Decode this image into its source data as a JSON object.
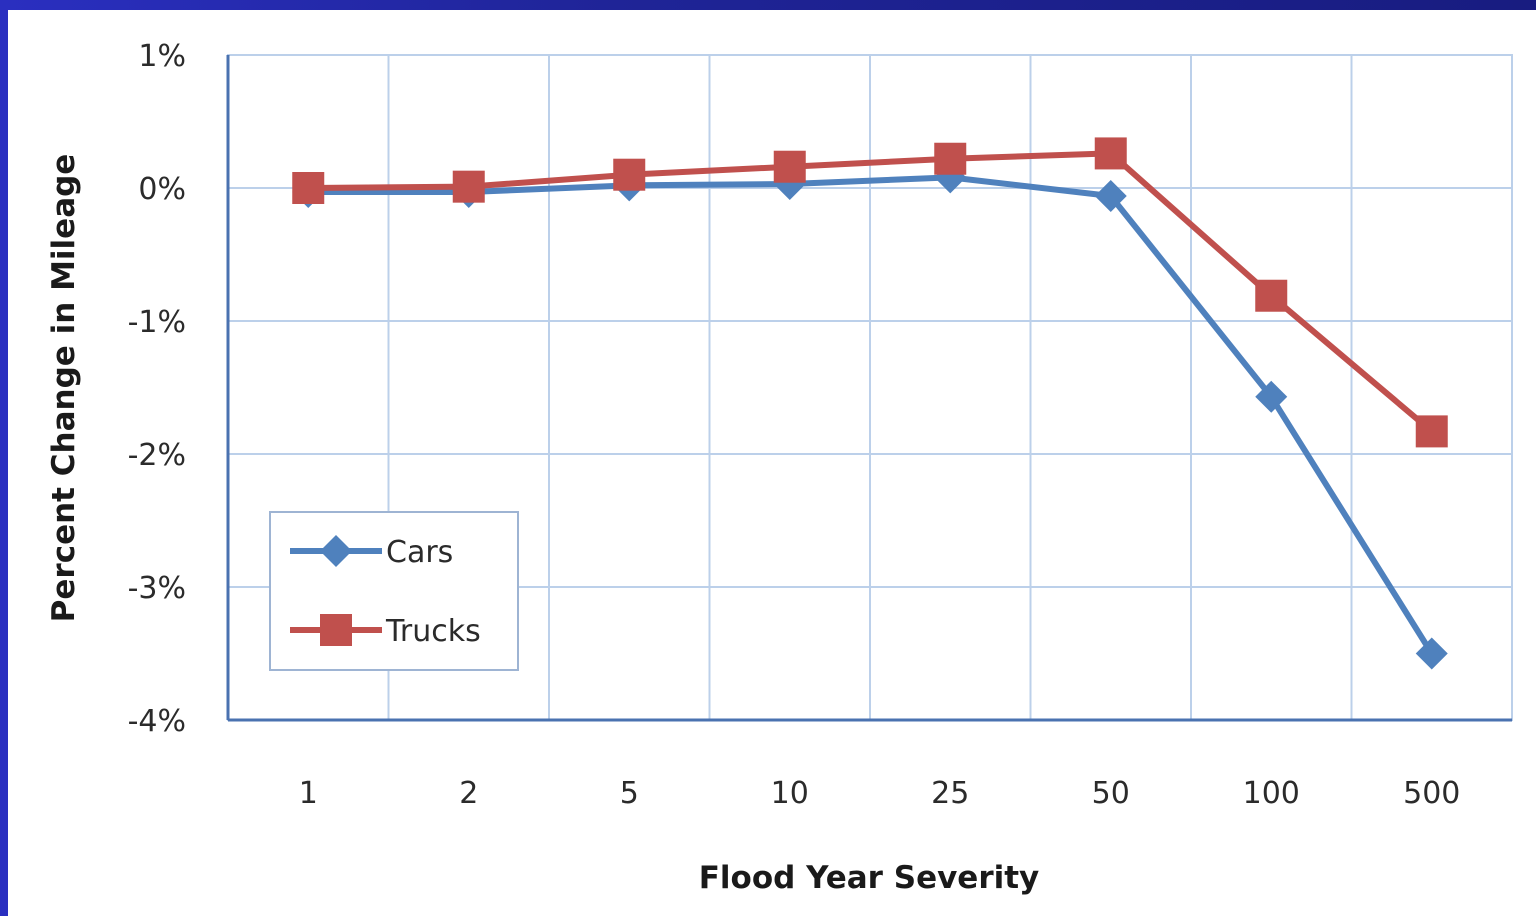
{
  "chart_data": {
    "type": "line",
    "xlabel": "Flood Year Severity",
    "ylabel": "Percent Change in Mileage",
    "categories": [
      "1",
      "2",
      "5",
      "10",
      "25",
      "50",
      "100",
      "500"
    ],
    "y_ticks": [
      "1%",
      "0%",
      "-1%",
      "-2%",
      "-3%",
      "-4%"
    ],
    "ylim": [
      -4,
      1
    ],
    "grid": true,
    "legend_position": "lower-left",
    "series": [
      {
        "name": "Cars",
        "color": "#4f81bd",
        "marker": "diamond",
        "values": [
          -0.03,
          -0.03,
          0.02,
          0.03,
          0.08,
          -0.06,
          -1.57,
          -3.5
        ]
      },
      {
        "name": "Trucks",
        "color": "#c0504d",
        "marker": "square",
        "values": [
          0.0,
          0.01,
          0.1,
          0.16,
          0.22,
          0.26,
          -0.81,
          -1.83
        ]
      }
    ]
  }
}
